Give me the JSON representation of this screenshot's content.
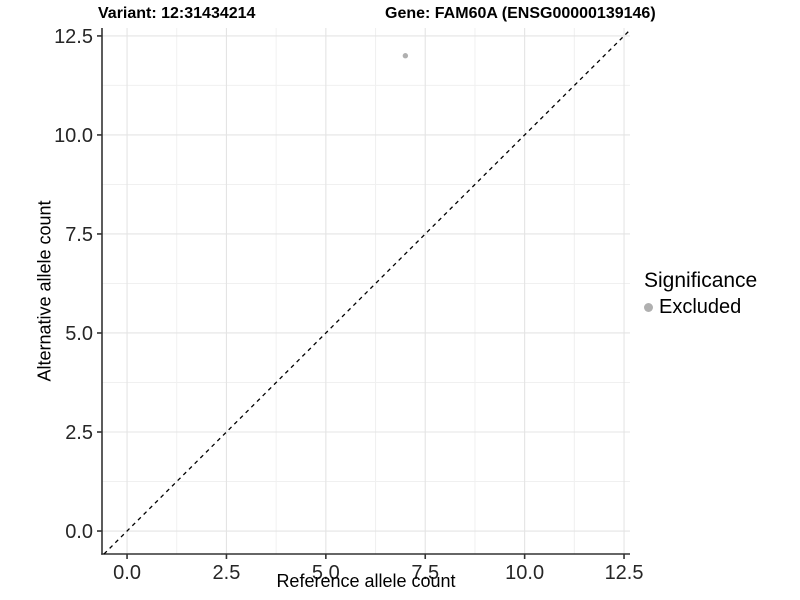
{
  "titles": {
    "variant": "Variant: 12:31434214",
    "gene": "Gene: FAM60A (ENSG00000139146)"
  },
  "chart_data": {
    "type": "scatter",
    "xlabel": "Reference allele count",
    "ylabel": "Alternative allele count",
    "xlim": [
      -0.63,
      12.65
    ],
    "ylim": [
      -0.58,
      12.7
    ],
    "x_ticks": {
      "values": [
        0,
        2.5,
        5,
        7.5,
        10,
        12.5
      ],
      "labels": [
        "0.0",
        "2.5",
        "5.0",
        "7.5",
        "10.0",
        "12.5"
      ]
    },
    "y_ticks": {
      "values": [
        0,
        2.5,
        5,
        7.5,
        10,
        12.5
      ],
      "labels": [
        "0.0",
        "2.5",
        "5.0",
        "7.5",
        "10.0",
        "12.5"
      ]
    },
    "minor_breaks": [
      1.25,
      3.75,
      6.25,
      8.75,
      11.25
    ],
    "grid": "major+minor",
    "series": [
      {
        "name": "Excluded",
        "color": "#b0b0b0",
        "points": [
          [
            7,
            12
          ]
        ]
      }
    ],
    "reference_line": {
      "kind": "identity y=x",
      "style": "dashed",
      "color": "#000000"
    },
    "legend": {
      "position": "right",
      "title": "Significance",
      "items": [
        {
          "label": "Excluded",
          "color": "#b0b0b0"
        }
      ]
    }
  },
  "colors": {
    "background": "#ffffff",
    "grid_major": "#e4e4e4",
    "grid_minor": "#f0f0f0",
    "axis_line": "#333333",
    "tick_text": "#262626",
    "title_text": "#000000"
  }
}
